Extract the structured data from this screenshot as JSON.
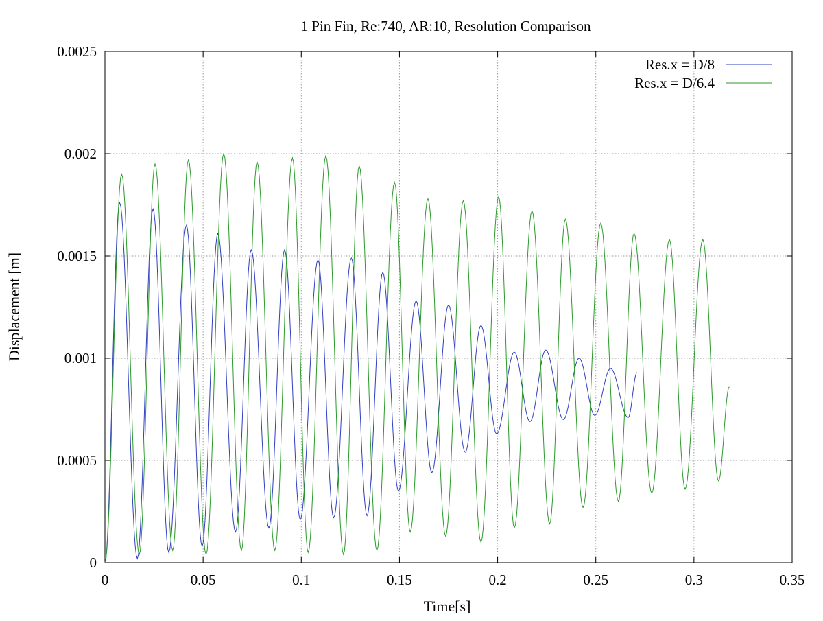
{
  "chart_data": {
    "type": "line",
    "title": "1 Pin Fin, Re:740, AR:10, Resolution Comparison",
    "xlabel": "Time[s]",
    "ylabel": "Displacement [m]",
    "xlim": [
      0,
      0.35
    ],
    "ylim": [
      0,
      0.0025
    ],
    "xticks": [
      0,
      0.05,
      0.1,
      0.15,
      0.2,
      0.25,
      0.3,
      0.35
    ],
    "xtick_labels": [
      "0",
      "0.05",
      "0.1",
      "0.15",
      "0.2",
      "0.25",
      "0.3",
      "0.35"
    ],
    "yticks": [
      0,
      0.0005,
      0.001,
      0.0015,
      0.002,
      0.0025
    ],
    "ytick_labels": [
      "0",
      "0.0005",
      "0.001",
      "0.0015",
      "0.002",
      "0.0025"
    ],
    "grid": true,
    "legend_position": "top-right",
    "series": [
      {
        "name": "Res.x = D/8",
        "color": "#2f3fbf",
        "x_end": 0.271,
        "peaks": [
          [
            0.0075,
            0.00176
          ],
          [
            0.0245,
            0.00173
          ],
          [
            0.0415,
            0.00165
          ],
          [
            0.0575,
            0.00161
          ],
          [
            0.0745,
            0.00153
          ],
          [
            0.0915,
            0.00153
          ],
          [
            0.1085,
            0.00148
          ],
          [
            0.1255,
            0.00149
          ],
          [
            0.1415,
            0.00142
          ],
          [
            0.1585,
            0.00128
          ],
          [
            0.175,
            0.00126
          ],
          [
            0.1915,
            0.00116
          ],
          [
            0.2085,
            0.00103
          ],
          [
            0.2245,
            0.00104
          ],
          [
            0.2415,
            0.001
          ],
          [
            0.2575,
            0.00095
          ],
          [
            0.271,
            0.00093
          ]
        ],
        "troughs": [
          [
            0,
            0.0
          ],
          [
            0.0165,
            2e-05
          ],
          [
            0.0325,
            5e-05
          ],
          [
            0.0495,
            8e-05
          ],
          [
            0.0665,
            0.00015
          ],
          [
            0.0835,
            0.00017
          ],
          [
            0.0995,
            0.00021
          ],
          [
            0.1165,
            0.00022
          ],
          [
            0.1335,
            0.00023
          ],
          [
            0.1495,
            0.00035
          ],
          [
            0.1665,
            0.00044
          ],
          [
            0.1835,
            0.00054
          ],
          [
            0.1995,
            0.00063
          ],
          [
            0.2165,
            0.00069
          ],
          [
            0.2335,
            0.0007
          ],
          [
            0.2495,
            0.00072
          ],
          [
            0.2665,
            0.00071
          ]
        ]
      },
      {
        "name": "Res.x = D/6.4",
        "color": "#2a9a2a",
        "x_end": 0.318,
        "peaks": [
          [
            0.0085,
            0.0019
          ],
          [
            0.0255,
            0.00195
          ],
          [
            0.0425,
            0.00197
          ],
          [
            0.0605,
            0.002
          ],
          [
            0.0775,
            0.00196
          ],
          [
            0.0955,
            0.00198
          ],
          [
            0.1125,
            0.00199
          ],
          [
            0.1295,
            0.00194
          ],
          [
            0.1475,
            0.00186
          ],
          [
            0.1645,
            0.00178
          ],
          [
            0.1825,
            0.00177
          ],
          [
            0.2005,
            0.00179
          ],
          [
            0.2175,
            0.00172
          ],
          [
            0.2345,
            0.00168
          ],
          [
            0.2525,
            0.00166
          ],
          [
            0.2695,
            0.00161
          ],
          [
            0.2875,
            0.00158
          ],
          [
            0.3045,
            0.00158
          ],
          [
            0.318,
            0.00086
          ]
        ],
        "troughs": [
          [
            0,
            0.0
          ],
          [
            0.0175,
            4e-05
          ],
          [
            0.0345,
            6e-05
          ],
          [
            0.0515,
            4e-05
          ],
          [
            0.0695,
            6e-05
          ],
          [
            0.0865,
            6e-05
          ],
          [
            0.1035,
            5e-05
          ],
          [
            0.1215,
            4e-05
          ],
          [
            0.1385,
            6e-05
          ],
          [
            0.1555,
            0.00015
          ],
          [
            0.1735,
            0.00013
          ],
          [
            0.1915,
            0.0001
          ],
          [
            0.2085,
            0.00017
          ],
          [
            0.2265,
            0.00019
          ],
          [
            0.2435,
            0.00027
          ],
          [
            0.2615,
            0.0003
          ],
          [
            0.2785,
            0.00034
          ],
          [
            0.2955,
            0.00036
          ],
          [
            0.3125,
            0.0004
          ]
        ]
      }
    ]
  }
}
